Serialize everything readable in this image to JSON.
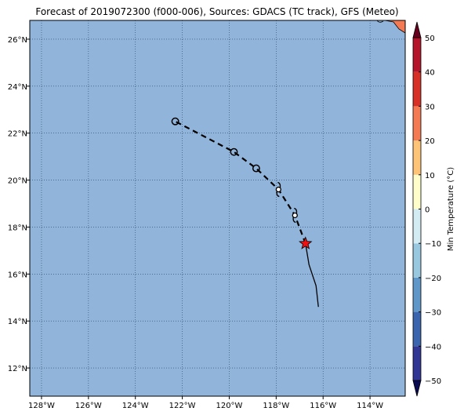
{
  "title": "Forecast of 2019072300 (f000-006), Sources: GDACS (TC track), GFS (Meteo)",
  "map": {
    "lon_range": [
      -128.5,
      -112.5
    ],
    "lat_range": [
      10.8,
      26.8
    ],
    "ocean_color": "#91b4da",
    "land_color": "#f47a53",
    "grid": true,
    "x_ticks": [
      {
        "value": -128,
        "label": "128°W"
      },
      {
        "value": -126,
        "label": "126°W"
      },
      {
        "value": -124,
        "label": "124°W"
      },
      {
        "value": -122,
        "label": "122°W"
      },
      {
        "value": -120,
        "label": "120°W"
      },
      {
        "value": -118,
        "label": "118°W"
      },
      {
        "value": -116,
        "label": "116°W"
      },
      {
        "value": -114,
        "label": "114°W"
      }
    ],
    "y_ticks": [
      {
        "value": 12,
        "label": "12°N"
      },
      {
        "value": 14,
        "label": "14°N"
      },
      {
        "value": 16,
        "label": "16°N"
      },
      {
        "value": 18,
        "label": "18°N"
      },
      {
        "value": 20,
        "label": "20°N"
      },
      {
        "value": 22,
        "label": "22°N"
      },
      {
        "value": 24,
        "label": "24°N"
      },
      {
        "value": 26,
        "label": "26°N"
      }
    ],
    "past_track": [
      {
        "lon": -116.2,
        "lat": 14.6
      },
      {
        "lon": -116.3,
        "lat": 15.5
      },
      {
        "lon": -116.6,
        "lat": 16.4
      },
      {
        "lon": -116.75,
        "lat": 17.3
      }
    ],
    "forecast_track": [
      {
        "lon": -116.75,
        "lat": 17.3,
        "symbol": "star"
      },
      {
        "lon": -117.2,
        "lat": 18.5,
        "symbol": "hurricane"
      },
      {
        "lon": -117.9,
        "lat": 19.6,
        "symbol": "hurricane"
      },
      {
        "lon": -118.85,
        "lat": 20.5,
        "symbol": "circle"
      },
      {
        "lon": -119.8,
        "lat": 21.2,
        "symbol": "circle"
      },
      {
        "lon": -122.3,
        "lat": 22.5,
        "symbol": "circle"
      }
    ],
    "current_position_color": "#ee1111"
  },
  "colorbar": {
    "label": "Min Temperature (°C)",
    "min": -55,
    "max": 55,
    "ticks": [
      {
        "value": -50,
        "label": "−50"
      },
      {
        "value": -40,
        "label": "−40"
      },
      {
        "value": -30,
        "label": "−30"
      },
      {
        "value": -20,
        "label": "−20"
      },
      {
        "value": -10,
        "label": "−10"
      },
      {
        "value": 0,
        "label": "0"
      },
      {
        "value": 10,
        "label": "10"
      },
      {
        "value": 20,
        "label": "20"
      },
      {
        "value": 30,
        "label": "30"
      },
      {
        "value": 40,
        "label": "40"
      },
      {
        "value": 50,
        "label": "50"
      }
    ],
    "bins": [
      {
        "from": -55,
        "to": -50,
        "color": "#0a0a52"
      },
      {
        "from": -50,
        "to": -40,
        "color": "#313695"
      },
      {
        "from": -40,
        "to": -30,
        "color": "#3a64ad"
      },
      {
        "from": -30,
        "to": -20,
        "color": "#5f97c8"
      },
      {
        "from": -20,
        "to": -10,
        "color": "#98c8df"
      },
      {
        "from": -10,
        "to": 0,
        "color": "#d3ecf4"
      },
      {
        "from": 0,
        "to": 10,
        "color": "#fffdc9"
      },
      {
        "from": 10,
        "to": 20,
        "color": "#fdc478"
      },
      {
        "from": 20,
        "to": 30,
        "color": "#f47a53"
      },
      {
        "from": 30,
        "to": 40,
        "color": "#d73027"
      },
      {
        "from": 40,
        "to": 50,
        "color": "#b4152a"
      },
      {
        "from": 50,
        "to": 55,
        "color": "#67001f"
      }
    ]
  }
}
